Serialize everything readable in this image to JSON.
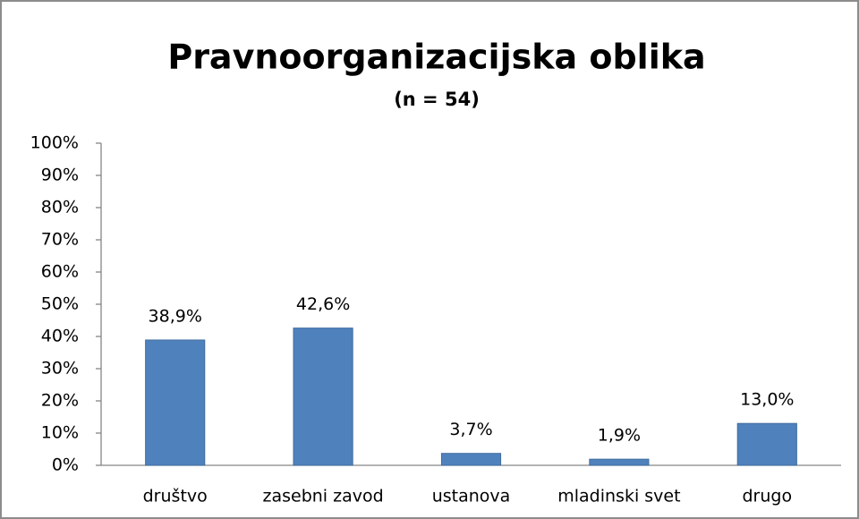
{
  "chart_data": {
    "type": "bar",
    "title": "Pravnoorganizacijska oblika",
    "subtitle": "(n = 54)",
    "categories": [
      "društvo",
      "zasebni zavod",
      "ustanova",
      "mladinski svet",
      "drugo"
    ],
    "values": [
      38.9,
      42.6,
      3.7,
      1.9,
      13.0
    ],
    "value_labels": [
      "38,9%",
      "42,6%",
      "3,7%",
      "1,9%",
      "13,0%"
    ],
    "color": "#4f81bd",
    "ylim": [
      0,
      100
    ],
    "yticks": [
      {
        "value": 0,
        "label": "0%"
      },
      {
        "value": 10,
        "label": "10%"
      },
      {
        "value": 20,
        "label": "20%"
      },
      {
        "value": 30,
        "label": "30%"
      },
      {
        "value": 40,
        "label": "40%"
      },
      {
        "value": 50,
        "label": "50%"
      },
      {
        "value": 60,
        "label": "60%"
      },
      {
        "value": 70,
        "label": "70%"
      },
      {
        "value": 80,
        "label": "80%"
      },
      {
        "value": 90,
        "label": "90%"
      },
      {
        "value": 100,
        "label": "100%"
      }
    ],
    "grid": false
  }
}
